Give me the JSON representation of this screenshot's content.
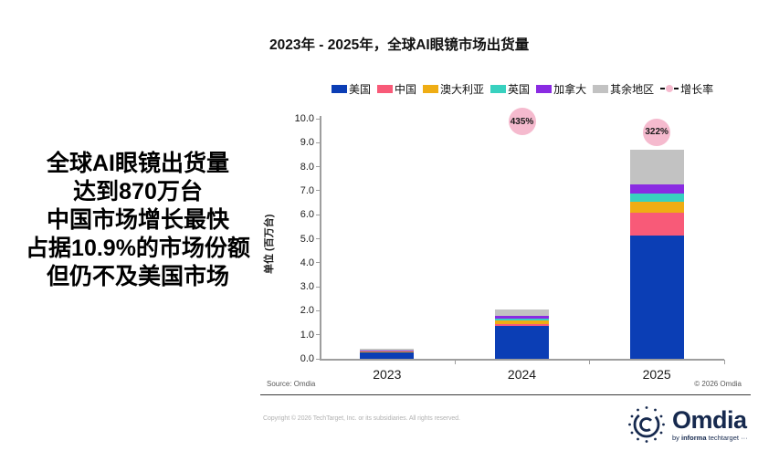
{
  "title": "2023年 - 2025年，全球AI眼镜市场出货量",
  "annotation": {
    "lines": [
      "全球AI眼镜出货量",
      "达到870万台",
      "中国市场增长最快",
      "占据10.9%的市场份额",
      "但仍不及美国市场"
    ]
  },
  "chart_data": {
    "type": "bar",
    "stacked": true,
    "categories": [
      "2023",
      "2024",
      "2025"
    ],
    "series": [
      {
        "name": "美国",
        "color": "#0B3EB5",
        "values": [
          0.3,
          1.37,
          5.15
        ]
      },
      {
        "name": "中国",
        "color": "#F85A78",
        "values": [
          0.01,
          0.08,
          0.95
        ]
      },
      {
        "name": "澳大利亚",
        "color": "#EFAD14",
        "values": [
          0.01,
          0.13,
          0.45
        ]
      },
      {
        "name": "英国",
        "color": "#38D1BF",
        "values": [
          0.01,
          0.09,
          0.35
        ]
      },
      {
        "name": "加拿大",
        "color": "#8A2BE2",
        "values": [
          0.01,
          0.11,
          0.35
        ]
      },
      {
        "name": "其余地区",
        "color": "#C2C2C2",
        "values": [
          0.06,
          0.28,
          1.45
        ]
      }
    ],
    "growth_series": {
      "name": "增长率",
      "marker_color": "#F5BACE",
      "points": [
        {
          "category": "2024",
          "label": "435%",
          "axis_value": 9.88
        },
        {
          "category": "2025",
          "label": "322%",
          "axis_value": 9.43
        }
      ]
    },
    "ylabel": "单位 (百万台)",
    "ylim": [
      0,
      10
    ],
    "ytick_step": 1.0,
    "legend_position": "top-right",
    "grid": false
  },
  "footer": {
    "source": "Source: Omdia",
    "chart_copyright": "© 2026 Omdia",
    "page_copyright": "Copyright © 2026 TechTarget, Inc. or its subsidiaries. All rights reserved."
  },
  "logo": {
    "name": "Omdia",
    "tagline_by": "by",
    "tagline_informa": "informa",
    "tagline_rest": "techtarget",
    "tagline_dots": "···"
  }
}
